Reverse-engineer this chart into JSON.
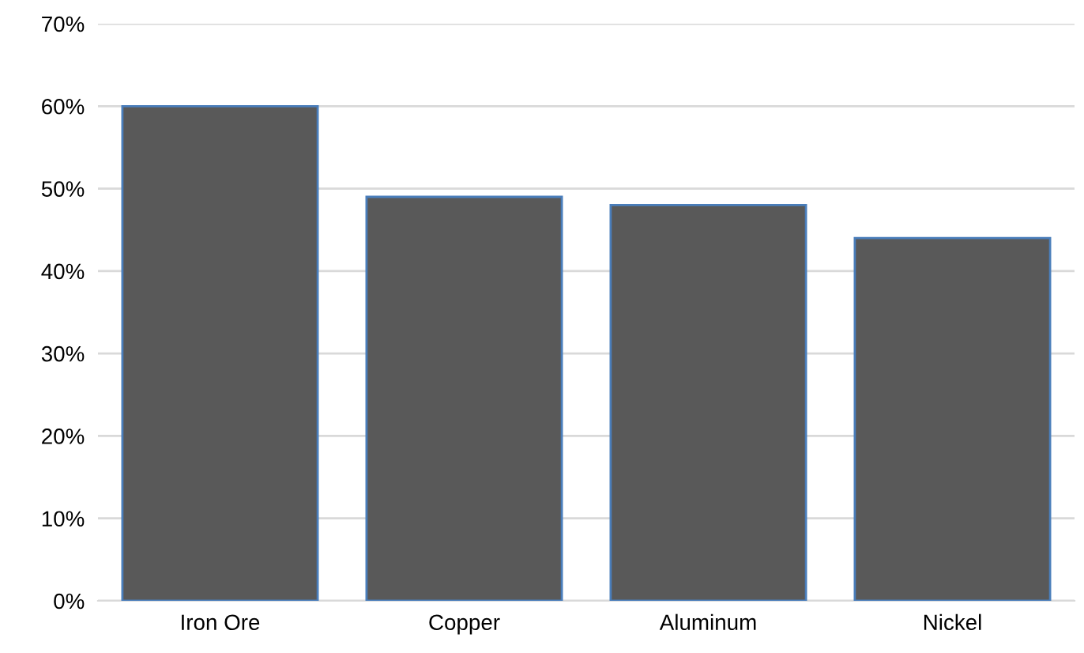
{
  "chart_data": {
    "type": "bar",
    "categories": [
      "Iron Ore",
      "Copper",
      "Aluminum",
      "Nickel"
    ],
    "values": [
      60,
      49,
      48,
      44
    ],
    "color": "#595959",
    "ylim": [
      0,
      70
    ],
    "yticks": [
      {
        "value": 0,
        "label": "0%"
      },
      {
        "value": 10,
        "label": "10%"
      },
      {
        "value": 20,
        "label": "20%"
      },
      {
        "value": 30,
        "label": "30%"
      },
      {
        "value": 40,
        "label": "40%"
      },
      {
        "value": 50,
        "label": "50%"
      },
      {
        "value": 60,
        "label": "60%"
      },
      {
        "value": 70,
        "label": "70%"
      }
    ],
    "grid": "y"
  }
}
